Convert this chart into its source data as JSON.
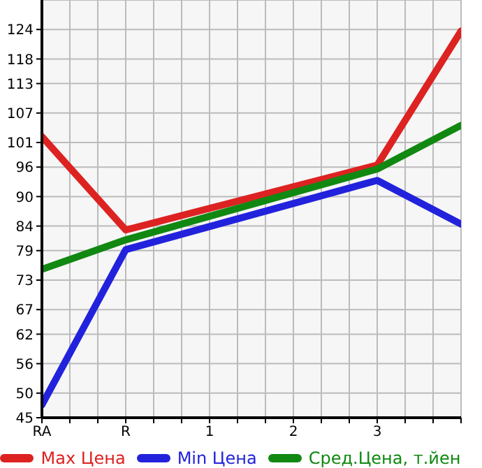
{
  "chart_data": {
    "type": "line",
    "categories": [
      "RA",
      "R",
      "1",
      "2",
      "3",
      null
    ],
    "series": [
      {
        "name": "Max Цена",
        "color": "#dd2222",
        "values": [
          102.2,
          83.2,
          null,
          null,
          96.4,
          123.7
        ]
      },
      {
        "name": "Min Цена",
        "color": "#2222dd",
        "values": [
          47.6,
          79.2,
          null,
          null,
          93.3,
          84.4
        ]
      },
      {
        "name": "Сред.Цена, т.йен",
        "color": "#118811",
        "values": [
          75.2,
          81.2,
          null,
          null,
          95.6,
          104.5
        ]
      }
    ],
    "ylim": [
      45,
      130
    ],
    "yticks": [
      45,
      50,
      56,
      62,
      67,
      73,
      79,
      84,
      90,
      96,
      101,
      107,
      113,
      118,
      124
    ],
    "grid": true,
    "legend": "bottom",
    "marker": "none",
    "line_style": "solid"
  }
}
